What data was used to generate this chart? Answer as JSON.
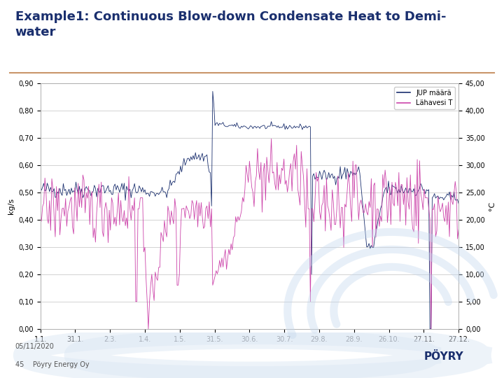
{
  "title": "Example1: Continuous Blow-down Condensate Heat to Demi-\nwater",
  "title_color": "#1a2f6e",
  "title_fontsize": 13,
  "separator_color": "#c9956a",
  "bg_color": "#ffffff",
  "plot_bg_color": "#ffffff",
  "left_ylabel": "kg/s",
  "right_ylabel": "°C",
  "left_ylim": [
    0.0,
    0.9
  ],
  "right_ylim": [
    0.0,
    45.0
  ],
  "left_yticks": [
    0.0,
    0.1,
    0.2,
    0.3,
    0.4,
    0.5,
    0.6,
    0.7,
    0.8,
    0.9
  ],
  "left_ytick_labels": [
    "0,00",
    "0,10",
    "0,20",
    "0,30",
    "0,40",
    "0,50",
    "0,60",
    "0,70",
    "0,80",
    "0,90"
  ],
  "right_yticks": [
    0.0,
    5.0,
    10.0,
    15.0,
    20.0,
    25.0,
    30.0,
    35.0,
    40.0,
    45.0
  ],
  "right_ytick_labels": [
    "0,00",
    "5,00",
    "10,00",
    "15,00",
    "20,00",
    "25,00",
    "30,00",
    "35,00",
    "40,00",
    "45,00"
  ],
  "xtick_labels": [
    "1.1.",
    "31.1.",
    "2.3.",
    "1.4.",
    "1.5.",
    "31.5.",
    "30.6.",
    "30.7.",
    "29.8.",
    "28.9.",
    "26.10.",
    "27.11.",
    "27.12."
  ],
  "grid_color": "#c0c0c0",
  "grid_lw": 0.5,
  "line1_color": "#1a2f6e",
  "line1_label": "JUP määrä",
  "line2_color": "#cc44aa",
  "line2_label": "Lähavesi T",
  "footer_page": "45",
  "footer_date": "05/11/2020",
  "footer_company": "Pöyry Energy Oy",
  "watermark_color": "#dde8f5"
}
